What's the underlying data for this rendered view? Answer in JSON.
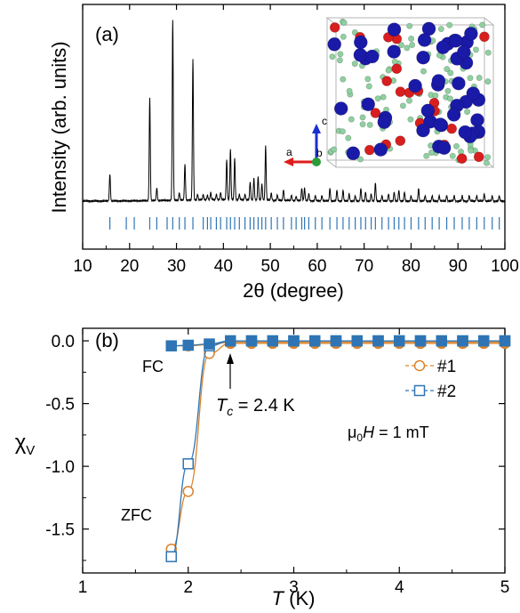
{
  "figure": {
    "panel_a": {
      "label": "(a)",
      "xlabel": "2θ (degree)",
      "ylabel": "Intensity (arb. units)",
      "xlim": [
        10,
        100
      ],
      "x_ticks": [
        "10",
        "20",
        "30",
        "40",
        "50",
        "60",
        "70",
        "80",
        "90",
        "100"
      ],
      "colors": {
        "pattern": "#000000",
        "bragg_ticks": "#2f75b5"
      },
      "inset": {
        "description": "crystal structure unit cell",
        "atom_colors": {
          "large": "#1a1aa8",
          "medium": "#d81e1e",
          "small": "#8fd0a0"
        },
        "axes": {
          "a": "a",
          "b": "b",
          "c": "c"
        }
      }
    },
    "panel_b": {
      "label": "(b)",
      "xlabel_italic": "T",
      "xlabel_unit": " (K)",
      "ylabel": "χ",
      "ylabel_sub": "V",
      "xlim": [
        1,
        5
      ],
      "ylim": [
        -1.85,
        0.1
      ],
      "x_ticks": [
        "1",
        "2",
        "3",
        "4",
        "5"
      ],
      "y_ticks": [
        "0.0",
        "-0.5",
        "-1.0",
        "-1.5"
      ],
      "annotations": {
        "fc": "FC",
        "zfc": "ZFC",
        "tc_italic": "T",
        "tc_sub": "c",
        "tc_rest": " = 2.4 K",
        "field_mu": "μ",
        "field_sub": "0",
        "field_italic": "H",
        "field_rest": " = 1 mT"
      },
      "legend": [
        "#1",
        "#2"
      ],
      "colors": {
        "s1": "#d9822b",
        "s2": "#2f75b5"
      }
    }
  },
  "chart_data": [
    {
      "type": "line",
      "title": "",
      "xlabel": "2θ (degree)",
      "ylabel": "Intensity (arb. units)",
      "xlim": [
        10,
        100
      ],
      "peaks": [
        {
          "x": 15.8,
          "h": 0.15
        },
        {
          "x": 24.3,
          "h": 0.57
        },
        {
          "x": 25.8,
          "h": 0.07
        },
        {
          "x": 29.2,
          "h": 1.0
        },
        {
          "x": 30.6,
          "h": 0.04
        },
        {
          "x": 31.8,
          "h": 0.2
        },
        {
          "x": 33.5,
          "h": 0.78
        },
        {
          "x": 34.5,
          "h": 0.03
        },
        {
          "x": 35.7,
          "h": 0.03
        },
        {
          "x": 36.6,
          "h": 0.025
        },
        {
          "x": 37.3,
          "h": 0.04
        },
        {
          "x": 38.5,
          "h": 0.03
        },
        {
          "x": 39.4,
          "h": 0.04
        },
        {
          "x": 40.7,
          "h": 0.22
        },
        {
          "x": 41.5,
          "h": 0.28
        },
        {
          "x": 42.4,
          "h": 0.23
        },
        {
          "x": 43.4,
          "h": 0.03
        },
        {
          "x": 44.6,
          "h": 0.03
        },
        {
          "x": 45.7,
          "h": 0.1
        },
        {
          "x": 46.5,
          "h": 0.12
        },
        {
          "x": 47.4,
          "h": 0.13
        },
        {
          "x": 48.2,
          "h": 0.09
        },
        {
          "x": 49.0,
          "h": 0.3
        },
        {
          "x": 50.2,
          "h": 0.04
        },
        {
          "x": 51.5,
          "h": 0.03
        },
        {
          "x": 52.8,
          "h": 0.06
        },
        {
          "x": 54.5,
          "h": 0.03
        },
        {
          "x": 55.5,
          "h": 0.025
        },
        {
          "x": 56.7,
          "h": 0.07
        },
        {
          "x": 57.3,
          "h": 0.07
        },
        {
          "x": 58.2,
          "h": 0.04
        },
        {
          "x": 59.6,
          "h": 0.03
        },
        {
          "x": 61.0,
          "h": 0.03
        },
        {
          "x": 62.7,
          "h": 0.07
        },
        {
          "x": 64.2,
          "h": 0.06
        },
        {
          "x": 65.5,
          "h": 0.06
        },
        {
          "x": 66.8,
          "h": 0.04
        },
        {
          "x": 68.1,
          "h": 0.03
        },
        {
          "x": 69.3,
          "h": 0.07
        },
        {
          "x": 70.3,
          "h": 0.05
        },
        {
          "x": 71.5,
          "h": 0.04
        },
        {
          "x": 72.4,
          "h": 0.1
        },
        {
          "x": 73.8,
          "h": 0.03
        },
        {
          "x": 75.2,
          "h": 0.04
        },
        {
          "x": 76.4,
          "h": 0.05
        },
        {
          "x": 77.4,
          "h": 0.06
        },
        {
          "x": 78.6,
          "h": 0.05
        },
        {
          "x": 80.0,
          "h": 0.03
        },
        {
          "x": 81.6,
          "h": 0.07
        },
        {
          "x": 83.0,
          "h": 0.03
        },
        {
          "x": 84.5,
          "h": 0.03
        },
        {
          "x": 86.0,
          "h": 0.03
        },
        {
          "x": 87.6,
          "h": 0.03
        },
        {
          "x": 89.2,
          "h": 0.03
        },
        {
          "x": 90.9,
          "h": 0.03
        },
        {
          "x": 92.4,
          "h": 0.03
        },
        {
          "x": 94.0,
          "h": 0.03
        },
        {
          "x": 95.6,
          "h": 0.04
        },
        {
          "x": 97.3,
          "h": 0.03
        },
        {
          "x": 98.8,
          "h": 0.03
        }
      ],
      "bragg_positions": [
        15.8,
        19.3,
        21.0,
        24.3,
        25.8,
        28.0,
        29.2,
        30.6,
        31.8,
        33.5,
        35.7,
        36.6,
        37.3,
        38.5,
        39.4,
        40.7,
        41.5,
        42.4,
        43.4,
        44.6,
        45.7,
        46.5,
        47.4,
        48.2,
        49.0,
        50.2,
        51.5,
        52.8,
        54.5,
        55.5,
        56.7,
        57.3,
        58.2,
        59.6,
        61.0,
        62.7,
        64.2,
        65.5,
        66.8,
        68.1,
        69.3,
        70.3,
        71.5,
        72.4,
        73.8,
        75.2,
        76.4,
        77.4,
        78.6,
        80.0,
        81.6,
        83.0,
        84.5,
        86.0,
        87.6,
        89.2,
        90.9,
        92.4,
        94.0,
        95.6,
        97.3,
        98.8
      ]
    },
    {
      "type": "line",
      "title": "",
      "xlabel": "T (K)",
      "ylabel": "χV",
      "xlim": [
        1,
        5
      ],
      "ylim": [
        -1.85,
        0.1
      ],
      "series": [
        {
          "name": "#1",
          "marker": "circle",
          "zfc_x": [
            1.84,
            2.0,
            2.2,
            2.4,
            2.6,
            2.8,
            3.0,
            3.2,
            3.4,
            3.6,
            3.8,
            4.0,
            4.2,
            4.4,
            4.6,
            4.8,
            5.0
          ],
          "zfc_y": [
            -1.66,
            -1.2,
            -0.1,
            -0.02,
            -0.02,
            -0.02,
            -0.02,
            -0.02,
            -0.02,
            -0.02,
            -0.02,
            -0.02,
            -0.02,
            -0.02,
            -0.02,
            -0.02,
            -0.02
          ],
          "fc_x": [
            1.84,
            2.0,
            2.2,
            2.4,
            2.6,
            2.8,
            3.0,
            3.2,
            3.4,
            3.6,
            3.8,
            4.0,
            4.2,
            4.4,
            4.6,
            4.8,
            5.0
          ],
          "fc_y": [
            -0.04,
            -0.04,
            -0.03,
            -0.01,
            -0.01,
            -0.01,
            -0.01,
            -0.01,
            -0.01,
            -0.01,
            -0.01,
            -0.01,
            -0.01,
            -0.01,
            -0.01,
            -0.01,
            -0.01
          ]
        },
        {
          "name": "#2",
          "marker": "square",
          "zfc_x": [
            1.84,
            2.0,
            2.2,
            2.4,
            2.6,
            2.8,
            3.0,
            3.2,
            3.4,
            3.6,
            3.8,
            4.0,
            4.2,
            4.4,
            4.6,
            4.8,
            5.0
          ],
          "zfc_y": [
            -1.72,
            -0.98,
            -0.04,
            0.0,
            0.0,
            0.0,
            0.0,
            0.0,
            0.0,
            0.0,
            0.0,
            0.0,
            0.0,
            0.0,
            0.0,
            0.0,
            0.0
          ],
          "fc_x": [
            1.84,
            2.0,
            2.2,
            2.4,
            2.6,
            2.8,
            3.0,
            3.2,
            3.4,
            3.6,
            3.8,
            4.0,
            4.2,
            4.4,
            4.6,
            4.8,
            5.0
          ],
          "fc_y": [
            -0.04,
            -0.035,
            -0.025,
            0.0,
            0.0,
            0.0,
            0.0,
            0.0,
            0.0,
            0.0,
            0.0,
            0.0,
            0.0,
            0.0,
            0.0,
            0.0,
            0.0
          ]
        }
      ]
    }
  ]
}
